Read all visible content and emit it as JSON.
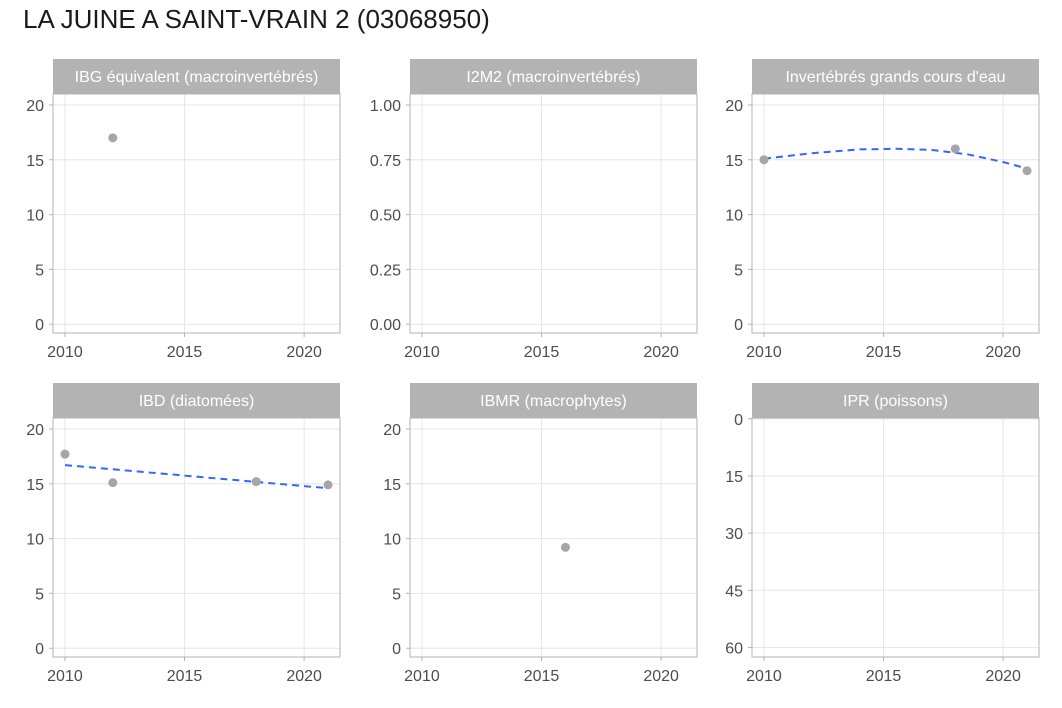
{
  "title": "LA JUINE A SAINT-VRAIN 2 (03068950)",
  "colors": {
    "point": "#a6a6a6",
    "trend": "#3366ff",
    "strip": "#b3b3b3",
    "grid": "#e6e6e6",
    "border": "#b3b3b3"
  },
  "chart_data": [
    {
      "type": "scatter",
      "title": "IBG équivalent (macroinvertébrés)",
      "xlim": [
        2009.5,
        2021.5
      ],
      "ylim": [
        -0.8,
        21
      ],
      "xticks": [
        2010,
        2015,
        2020
      ],
      "yticks": [
        0,
        5,
        10,
        15,
        20
      ],
      "ytick_labels": [
        "0",
        "5",
        "10",
        "15",
        "20"
      ],
      "y_reversed": false,
      "points": [
        {
          "x": 2012,
          "y": 17
        }
      ],
      "trend": null
    },
    {
      "type": "scatter",
      "title": "I2M2 (macroinvertébrés)",
      "xlim": [
        2009.5,
        2021.5
      ],
      "ylim": [
        -0.04,
        1.05
      ],
      "xticks": [
        2010,
        2015,
        2020
      ],
      "yticks": [
        0,
        0.25,
        0.5,
        0.75,
        1.0
      ],
      "ytick_labels": [
        "0.00",
        "0.25",
        "0.50",
        "0.75",
        "1.00"
      ],
      "y_reversed": false,
      "points": [],
      "trend": null
    },
    {
      "type": "scatter",
      "title": "Invertébrés grands cours d'eau",
      "xlim": [
        2009.5,
        2021.5
      ],
      "ylim": [
        -0.8,
        21
      ],
      "xticks": [
        2010,
        2015,
        2020
      ],
      "yticks": [
        0,
        5,
        10,
        15,
        20
      ],
      "ytick_labels": [
        "0",
        "5",
        "10",
        "15",
        "20"
      ],
      "y_reversed": false,
      "points": [
        {
          "x": 2010,
          "y": 15
        },
        {
          "x": 2018,
          "y": 16
        },
        {
          "x": 2021,
          "y": 14
        }
      ],
      "trend": {
        "style": "dashed",
        "points": [
          [
            2010,
            15.1
          ],
          [
            2012,
            15.6
          ],
          [
            2014,
            15.95
          ],
          [
            2015.5,
            16.0
          ],
          [
            2017,
            15.9
          ],
          [
            2018.5,
            15.5
          ],
          [
            2020,
            14.8
          ],
          [
            2021,
            14.2
          ]
        ]
      }
    },
    {
      "type": "scatter",
      "title": "IBD (diatomées)",
      "xlim": [
        2009.5,
        2021.5
      ],
      "ylim": [
        -0.8,
        21
      ],
      "xticks": [
        2010,
        2015,
        2020
      ],
      "yticks": [
        0,
        5,
        10,
        15,
        20
      ],
      "ytick_labels": [
        "0",
        "5",
        "10",
        "15",
        "20"
      ],
      "y_reversed": false,
      "points": [
        {
          "x": 2010,
          "y": 17.7
        },
        {
          "x": 2012,
          "y": 15.1
        },
        {
          "x": 2018,
          "y": 15.2
        },
        {
          "x": 2021,
          "y": 14.9
        }
      ],
      "trend": {
        "style": "dashed",
        "points": [
          [
            2010,
            16.7
          ],
          [
            2021,
            14.6
          ]
        ]
      }
    },
    {
      "type": "scatter",
      "title": "IBMR (macrophytes)",
      "xlim": [
        2009.5,
        2021.5
      ],
      "ylim": [
        -0.8,
        21
      ],
      "xticks": [
        2010,
        2015,
        2020
      ],
      "yticks": [
        0,
        5,
        10,
        15,
        20
      ],
      "ytick_labels": [
        "0",
        "5",
        "10",
        "15",
        "20"
      ],
      "y_reversed": false,
      "points": [
        {
          "x": 2016,
          "y": 9.2
        }
      ],
      "trend": null
    },
    {
      "type": "scatter",
      "title": "IPR (poissons)",
      "xlim": [
        2009.5,
        2021.5
      ],
      "ylim": [
        -0.2,
        62.5
      ],
      "xticks": [
        2010,
        2015,
        2020
      ],
      "yticks": [
        0,
        15,
        30,
        45,
        60
      ],
      "ytick_labels": [
        "0",
        "15",
        "30",
        "45",
        "60"
      ],
      "y_reversed": true,
      "points": [],
      "trend": null
    }
  ]
}
